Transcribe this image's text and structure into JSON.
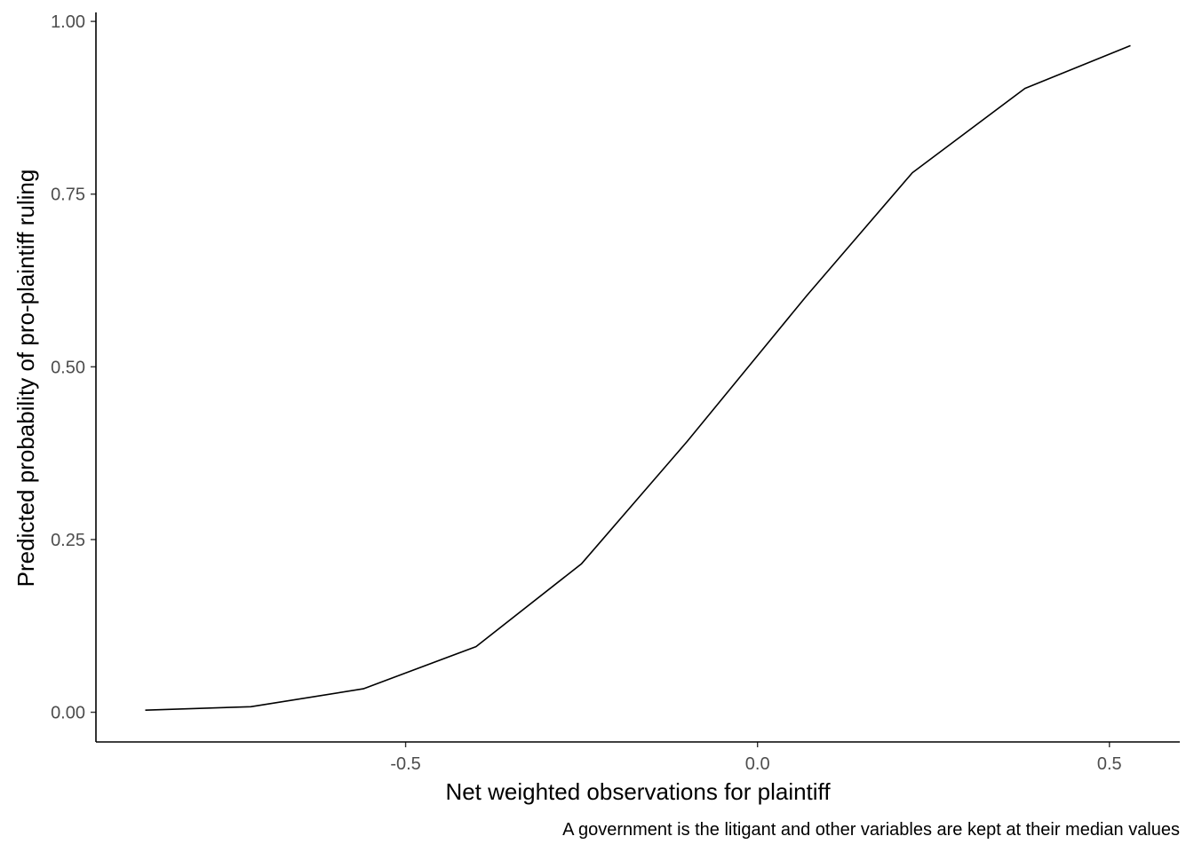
{
  "chart_data": {
    "type": "line",
    "title": "",
    "xlabel": "Net weighted observations for plaintiff",
    "ylabel": "Predicted probability of pro-plaintiff ruling",
    "caption": "A government is the litigant and other variables are kept at their median values",
    "xlim": [
      -0.94,
      0.6
    ],
    "ylim": [
      -0.043,
      1.013
    ],
    "x_ticks": [
      -0.5,
      0.0,
      0.5
    ],
    "x_tick_labels": [
      "-0.5",
      "0.0",
      "0.5"
    ],
    "y_ticks": [
      0.0,
      0.25,
      0.5,
      0.75,
      1.0
    ],
    "y_tick_labels": [
      "0.00",
      "0.25",
      "0.50",
      "0.75",
      "1.00"
    ],
    "grid": false,
    "legend": "none",
    "line_color": "#000000",
    "series": [
      {
        "x": [
          -0.87,
          -0.72,
          -0.56,
          -0.4,
          -0.25,
          -0.1,
          0.07,
          0.22,
          0.38,
          0.53
        ],
        "values": [
          0.003,
          0.008,
          0.034,
          0.095,
          0.215,
          0.392,
          0.603,
          0.781,
          0.903,
          0.965
        ]
      }
    ]
  }
}
